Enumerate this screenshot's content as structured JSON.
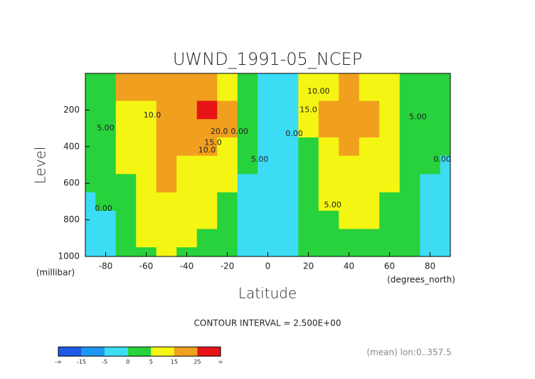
{
  "chart_data": {
    "type": "contour",
    "title": "UWND_1991-05_NCEP",
    "x_label": "Latitude",
    "x_unit": "(degrees_north)",
    "y_label": "Level",
    "y_unit": "(millibar)",
    "note": "CONTOUR INTERVAL = 2.500E+00",
    "footer": "(mean) lon:0..357.5",
    "xlim": [
      -90,
      90
    ],
    "xticks": [
      -80,
      -60,
      -40,
      -20,
      0,
      20,
      40,
      60,
      80
    ],
    "ylim": [
      1000,
      0
    ],
    "yticks": [
      200,
      400,
      600,
      800,
      1000
    ],
    "x": [
      -90,
      -80,
      -70,
      -60,
      -50,
      -40,
      -30,
      -20,
      -10,
      0,
      10,
      20,
      30,
      40,
      50,
      60,
      70,
      80,
      90
    ],
    "y": [
      100,
      200,
      300,
      400,
      500,
      600,
      700,
      800,
      900,
      1000
    ],
    "z": [
      [
        2,
        4,
        15,
        24,
        22,
        15,
        18,
        8,
        0,
        -2,
        -1,
        5,
        12,
        15,
        12,
        7,
        3,
        2,
        1
      ],
      [
        2,
        3,
        8,
        14,
        17,
        20,
        30,
        18,
        3,
        -2,
        -3,
        8,
        20,
        22,
        17,
        8,
        4,
        2,
        1
      ],
      [
        2,
        3,
        7,
        14,
        18,
        20,
        24,
        16,
        2,
        -3,
        -4,
        6,
        17,
        19,
        15,
        8,
        4,
        2,
        1
      ],
      [
        1,
        3,
        6,
        13,
        17,
        17,
        16,
        10,
        1,
        -4,
        -5,
        4,
        13,
        15,
        12,
        7,
        4,
        1,
        0
      ],
      [
        1,
        2,
        5,
        12,
        16,
        14,
        12,
        7,
        0,
        -5,
        -5,
        3,
        10,
        12,
        10,
        6,
        3,
        0,
        -1
      ],
      [
        0,
        1,
        4,
        11,
        15,
        12,
        9,
        5,
        -1,
        -5,
        -5,
        2,
        7,
        9,
        8,
        5,
        2,
        -1,
        -1
      ],
      [
        -1,
        0,
        3,
        9,
        14,
        10,
        7,
        3,
        -1,
        -4,
        -5,
        1,
        5,
        7,
        6,
        4,
        1,
        -1,
        -1
      ],
      [
        -2,
        -1,
        2,
        7,
        11,
        8,
        5,
        2,
        -2,
        -3,
        -3,
        0,
        3,
        5,
        5,
        3,
        0,
        -1,
        -1
      ],
      [
        -2,
        -2,
        1,
        5,
        9,
        6,
        3,
        1,
        -3,
        -2,
        -2,
        0,
        2,
        4,
        4,
        2,
        0,
        -1,
        -1
      ],
      [
        -1,
        -1,
        0,
        3,
        6,
        4,
        2,
        0,
        -4,
        -1,
        -1,
        0,
        1,
        2,
        2,
        1,
        0,
        -1,
        -1
      ]
    ],
    "colorbar": {
      "ticks": [
        "-∞",
        -15,
        -5,
        0,
        5,
        15,
        25,
        "∞"
      ],
      "colors": [
        "#1e5ae6",
        "#1e96f0",
        "#3cdcf5",
        "#28d23c",
        "#f5f514",
        "#f0a01e",
        "#e61414"
      ]
    },
    "contour_labels": [
      {
        "text": "10.0",
        "x": -57,
        "y": 230
      },
      {
        "text": "5.00",
        "x": -80,
        "y": 300
      },
      {
        "text": "0.00",
        "x": -81,
        "y": 740
      },
      {
        "text": "20.0",
        "x": -24,
        "y": 320
      },
      {
        "text": "15.0",
        "x": -27,
        "y": 380
      },
      {
        "text": "10.0",
        "x": -30,
        "y": 420
      },
      {
        "text": "0.00",
        "x": -14,
        "y": 320
      },
      {
        "text": "5.00",
        "x": -4,
        "y": 470
      },
      {
        "text": "0.00",
        "x": 13,
        "y": 330
      },
      {
        "text": "10.00",
        "x": 25,
        "y": 100
      },
      {
        "text": "15.0",
        "x": 20,
        "y": 200
      },
      {
        "text": "5.00",
        "x": 32,
        "y": 720
      },
      {
        "text": "5.00",
        "x": 74,
        "y": 240
      },
      {
        "text": "0.00",
        "x": 86,
        "y": 470
      }
    ]
  }
}
